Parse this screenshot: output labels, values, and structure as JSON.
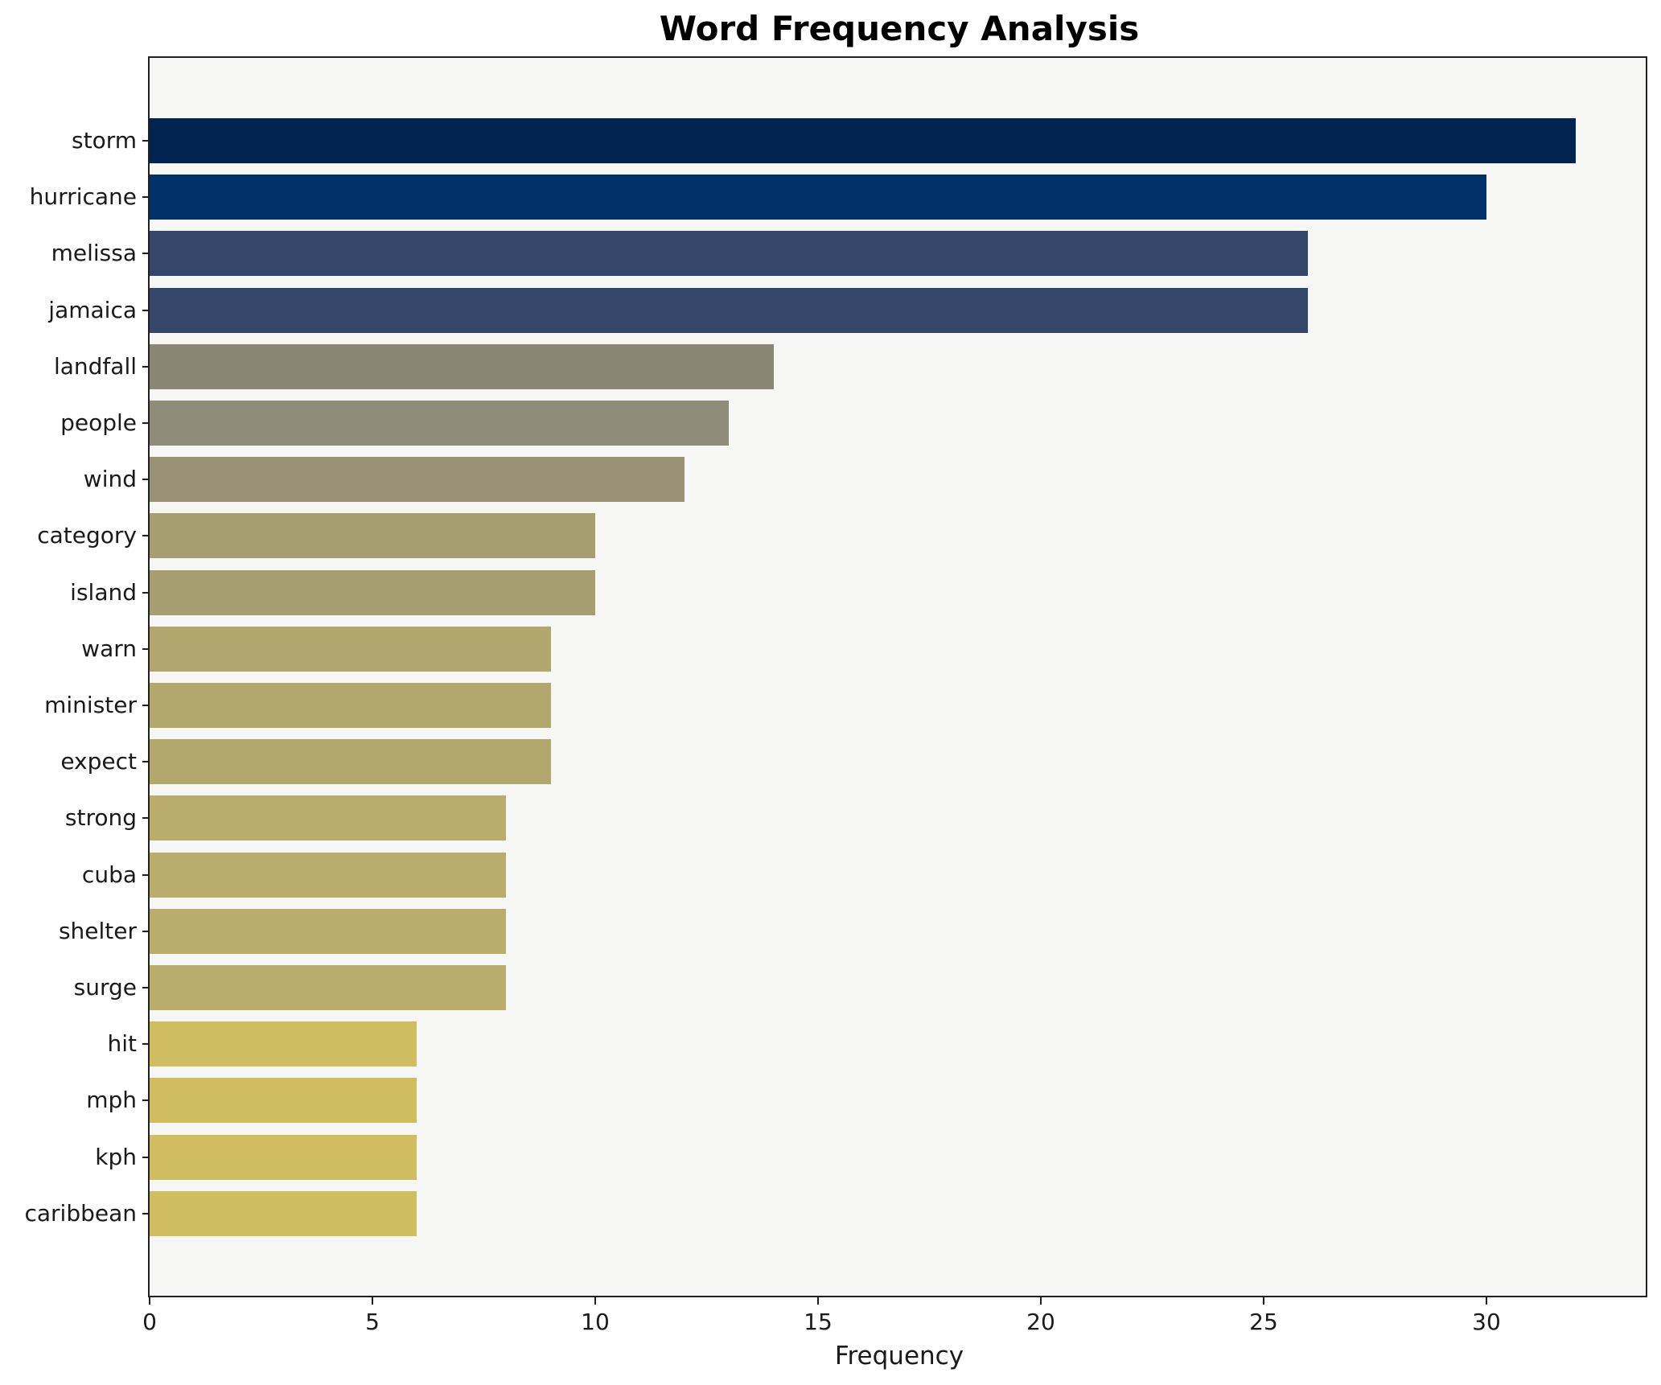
{
  "title": "Word Frequency Analysis",
  "chart_data": {
    "type": "bar",
    "orientation": "horizontal",
    "title": "Word Frequency Analysis",
    "xlabel": "Frequency",
    "ylabel": "",
    "categories": [
      "storm",
      "hurricane",
      "melissa",
      "jamaica",
      "landfall",
      "people",
      "wind",
      "category",
      "island",
      "warn",
      "minister",
      "expect",
      "strong",
      "cuba",
      "shelter",
      "surge",
      "hit",
      "mph",
      "kph",
      "caribbean"
    ],
    "values": [
      32,
      30,
      26,
      26,
      14,
      13,
      12,
      10,
      10,
      9,
      9,
      9,
      8,
      8,
      8,
      8,
      6,
      6,
      6,
      6
    ],
    "bar_colors": [
      "#002350",
      "#013168",
      "#35466b",
      "#35466b",
      "#8a8676",
      "#908c7a",
      "#999276",
      "#a69d70",
      "#a69d70",
      "#b1a66e",
      "#b2a76d",
      "#b2a76d",
      "#b9ac6c",
      "#b9ac6c",
      "#b9ac6c",
      "#b9ac6c",
      "#d0bd62",
      "#d0bd62",
      "#d0bd62",
      "#d0bd62"
    ],
    "xticks": [
      0,
      5,
      10,
      15,
      20,
      25,
      30
    ],
    "xlim": [
      0,
      33.6
    ],
    "grid": false,
    "legend_position": "none",
    "plot_background": "#f6f6f4",
    "figure_background": "#ffffff",
    "spine_color": "#202020"
  }
}
